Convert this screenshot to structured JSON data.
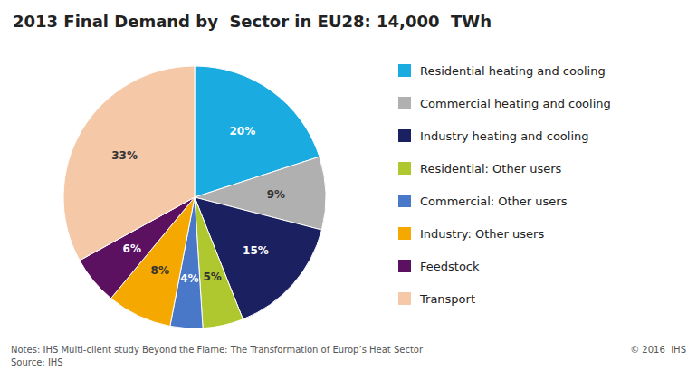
{
  "chart_data": {
    "type": "pie",
    "title": "2013 Final Demand by  Sector in EU28: 14,000  TWh",
    "categories": [
      "Residential heating and cooling",
      "Commercial heating and cooling",
      "Industry heating and cooling",
      "Residential: Other users",
      "Commercial: Other users",
      "Industry: Other users",
      "Feedstock",
      "Transport"
    ],
    "values": [
      20,
      9,
      15,
      5,
      4,
      8,
      6,
      33
    ],
    "value_labels": [
      "20%",
      "9%",
      "15%",
      "5%",
      "4%",
      "8%",
      "6%",
      "33%"
    ],
    "colors": [
      "#1aace0",
      "#b0b0b0",
      "#1a2060",
      "#b0c830",
      "#4a78c8",
      "#f5a800",
      "#5c1060",
      "#f5c8a8"
    ],
    "data_labels": true,
    "legend": "right",
    "annotations": [
      "Notes: IHS Multi-client study Beyond the Flame: The Transformation of Europ’s Heat Sector",
      "Source: IHS",
      "© 2016  IHS"
    ]
  }
}
